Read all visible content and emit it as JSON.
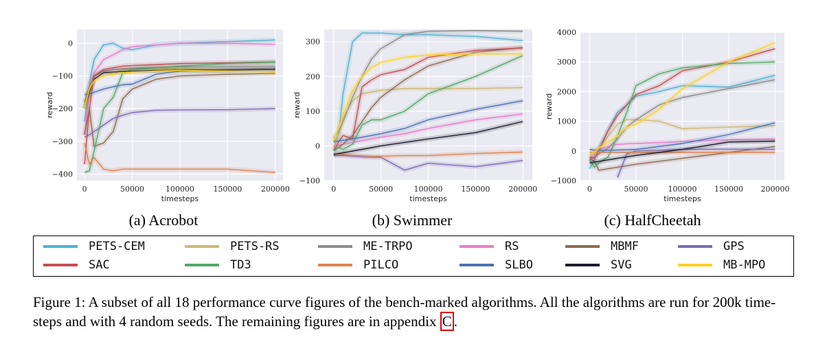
{
  "chart_data": [
    {
      "type": "line",
      "title": "(a) Acrobot",
      "xlabel": "timesteps",
      "ylabel": "reward",
      "xlim": [
        -8000,
        208000
      ],
      "ylim": [
        -420,
        42
      ],
      "xticks": [
        0,
        50000,
        100000,
        150000,
        200000
      ],
      "yticks": [
        -400,
        -300,
        -200,
        -100,
        0
      ],
      "grid": true,
      "x": [
        0,
        5000,
        10000,
        20000,
        30000,
        40000,
        50000,
        75000,
        100000,
        150000,
        200000
      ],
      "series": [
        {
          "name": "PETS-CEM",
          "values": [
            -240,
            -120,
            -50,
            -5,
            0,
            -15,
            -20,
            -5,
            0,
            5,
            10
          ]
        },
        {
          "name": "PETS-RS",
          "values": [
            -190,
            -130,
            -100,
            -85,
            -95,
            -80,
            -80,
            -75,
            -78,
            -82,
            -75
          ]
        },
        {
          "name": "ME-TRPO",
          "values": [
            -180,
            -130,
            -100,
            -85,
            -80,
            -78,
            -76,
            -74,
            -72,
            -71,
            -70
          ]
        },
        {
          "name": "RS",
          "values": [
            -280,
            -150,
            -90,
            -50,
            -35,
            -20,
            -10,
            -5,
            0,
            0,
            -3
          ]
        },
        {
          "name": "MBMF",
          "values": [
            -280,
            -200,
            -315,
            -305,
            -270,
            -170,
            -140,
            -110,
            -100,
            -95,
            -92
          ]
        },
        {
          "name": "GPS",
          "values": [
            -287,
            -280,
            -270,
            -250,
            -230,
            -220,
            -212,
            -205,
            -204,
            -203,
            -200
          ]
        },
        {
          "name": "SAC",
          "values": [
            -370,
            -200,
            -100,
            -80,
            -75,
            -70,
            -68,
            -65,
            -62,
            -60,
            -57
          ]
        },
        {
          "name": "TD3",
          "values": [
            -395,
            -390,
            -330,
            -200,
            -165,
            -90,
            -80,
            -75,
            -70,
            -62,
            -58
          ]
        },
        {
          "name": "PILCO",
          "values": [
            -305,
            -370,
            -350,
            -385,
            -390,
            -385,
            -385,
            -385,
            -385,
            -385,
            -395
          ]
        },
        {
          "name": "SLBO",
          "values": [
            -157,
            -155,
            -150,
            -140,
            -133,
            -127,
            -125,
            -95,
            -85,
            -80,
            -80
          ]
        },
        {
          "name": "SVG",
          "values": [
            -200,
            -150,
            -110,
            -90,
            -88,
            -86,
            -85,
            -83,
            -82,
            -82,
            -80
          ]
        },
        {
          "name": "MB-MPO",
          "values": [
            -200,
            -140,
            -115,
            -100,
            -95,
            -90,
            -88,
            -85,
            -83,
            -85,
            -88
          ]
        }
      ]
    },
    {
      "type": "line",
      "title": "(b) Swimmer",
      "xlabel": "timesteps",
      "ylabel": "reward",
      "xlim": [
        -10000,
        210000
      ],
      "ylim": [
        -100,
        335
      ],
      "xticks": [
        0,
        50000,
        100000,
        150000,
        200000
      ],
      "yticks": [
        -100,
        0,
        100,
        200,
        300
      ],
      "grid": true,
      "x": [
        0,
        5000,
        10000,
        20000,
        30000,
        40000,
        50000,
        75000,
        100000,
        150000,
        200000
      ],
      "series": [
        {
          "name": "PETS-CEM",
          "values": [
            10,
            30,
            150,
            300,
            325,
            325,
            325,
            320,
            320,
            315,
            303
          ]
        },
        {
          "name": "PETS-RS",
          "values": [
            -5,
            30,
            80,
            130,
            150,
            155,
            160,
            165,
            165,
            165,
            168
          ]
        },
        {
          "name": "ME-TRPO",
          "values": [
            22,
            40,
            70,
            140,
            200,
            250,
            280,
            320,
            330,
            332,
            330
          ]
        },
        {
          "name": "RS",
          "values": [
            0,
            2,
            5,
            10,
            15,
            20,
            25,
            35,
            50,
            75,
            92
          ]
        },
        {
          "name": "MBMF",
          "values": [
            -10,
            -5,
            5,
            30,
            70,
            110,
            140,
            190,
            230,
            270,
            283
          ]
        },
        {
          "name": "GPS",
          "values": [
            -28,
            -28,
            -28,
            -30,
            -32,
            -33,
            -33,
            -70,
            -50,
            -60,
            -42
          ]
        },
        {
          "name": "SAC",
          "values": [
            -15,
            10,
            30,
            20,
            170,
            190,
            205,
            220,
            255,
            275,
            282
          ]
        },
        {
          "name": "TD3",
          "values": [
            -15,
            -5,
            -10,
            5,
            60,
            75,
            75,
            100,
            150,
            200,
            260
          ]
        },
        {
          "name": "PILCO",
          "values": [
            -22,
            -24,
            -25,
            -27,
            -28,
            -30,
            -30,
            -28,
            -28,
            -22,
            -18
          ]
        },
        {
          "name": "SLBO",
          "values": [
            12,
            14,
            16,
            20,
            25,
            30,
            35,
            50,
            75,
            105,
            130
          ]
        },
        {
          "name": "SVG",
          "values": [
            -25,
            -22,
            -20,
            -15,
            -10,
            -5,
            0,
            10,
            20,
            38,
            70
          ]
        },
        {
          "name": "MB-MPO",
          "values": [
            15,
            50,
            90,
            160,
            200,
            225,
            240,
            255,
            262,
            265,
            265
          ]
        }
      ]
    },
    {
      "type": "line",
      "title": "(c) HalfCheetah",
      "xlabel": "timesteps",
      "ylabel": "reward",
      "xlim": [
        -10000,
        210000
      ],
      "ylim": [
        -1000,
        4000
      ],
      "xticks": [
        0,
        50000,
        100000,
        150000,
        200000
      ],
      "yticks": [
        -1000,
        0,
        1000,
        2000,
        3000,
        4000
      ],
      "grid": true,
      "x": [
        0,
        5000,
        10000,
        20000,
        30000,
        40000,
        50000,
        75000,
        100000,
        150000,
        200000
      ],
      "series": [
        {
          "name": "PETS-CEM",
          "values": [
            -600,
            -300,
            100,
            700,
            1300,
            1550,
            1850,
            2000,
            2200,
            2150,
            2550
          ]
        },
        {
          "name": "PETS-RS",
          "values": [
            -150,
            -50,
            100,
            500,
            900,
            1050,
            1050,
            1000,
            750,
            800,
            850
          ]
        },
        {
          "name": "ME-TRPO",
          "values": [
            -300,
            -200,
            -100,
            100,
            400,
            800,
            1050,
            1550,
            1800,
            2100,
            2400
          ]
        },
        {
          "name": "RS",
          "values": [
            -250,
            -100,
            50,
            150,
            220,
            240,
            250,
            280,
            320,
            380,
            400
          ]
        },
        {
          "name": "MBMF",
          "values": [
            -250,
            -350,
            -650,
            -600,
            -550,
            -500,
            -450,
            -350,
            -250,
            -50,
            150
          ]
        },
        {
          "name": "GPS",
          "values": [
            null,
            null,
            null,
            null,
            -900,
            -100,
            0,
            20,
            50,
            60,
            50
          ]
        },
        {
          "name": "SAC",
          "values": [
            -200,
            -250,
            0,
            700,
            1200,
            1550,
            1900,
            2200,
            2700,
            3000,
            3450
          ]
        },
        {
          "name": "TD3",
          "values": [
            -300,
            -550,
            -400,
            -200,
            500,
            1300,
            2200,
            2600,
            2800,
            2950,
            3000
          ]
        },
        {
          "name": "PILCO",
          "values": [
            -50,
            -50,
            -50,
            -50,
            -50,
            -50,
            -50,
            -50,
            -50,
            -50,
            -50
          ]
        },
        {
          "name": "SLBO",
          "values": [
            50,
            30,
            20,
            20,
            30,
            40,
            50,
            150,
            250,
            550,
            950
          ]
        },
        {
          "name": "SVG",
          "values": [
            -400,
            -380,
            -350,
            -300,
            -250,
            -200,
            -150,
            -50,
            50,
            300,
            330
          ]
        },
        {
          "name": "MB-MPO",
          "values": [
            -100,
            -50,
            100,
            300,
            500,
            800,
            900,
            1400,
            2100,
            3000,
            3650
          ]
        }
      ]
    }
  ],
  "colors": {
    "PETS-CEM": "#4fb3cf",
    "PETS-RS": "#ccb974",
    "ME-TRPO": "#8c8c8c",
    "RS": "#e67fcb",
    "MBMF": "#8c6d51",
    "GPS": "#7f6bb5",
    "SAC": "#c44e52",
    "TD3": "#55a868",
    "PILCO": "#dd8452",
    "SLBO": "#4c72b0",
    "SVG": "#1b1b2f",
    "MB-MPO": "#ffd21f",
    "plot_bg": "#eaeaf2",
    "grid": "#ffffff"
  },
  "legend": {
    "rows": [
      [
        "PETS-CEM",
        "PETS-RS",
        "ME-TRPO",
        "RS",
        "MBMF",
        "GPS"
      ],
      [
        "SAC",
        "TD3",
        "PILCO",
        "SLBO",
        "SVG",
        "MB-MPO"
      ]
    ]
  },
  "caption": {
    "label": "Figure 1:",
    "text": " A subset of all 18 performance curve figures of the bench-marked algorithms. All the algorithms are run for 200k time-steps and with 4 random seeds. The remaining figures are in appendix ",
    "link": "C",
    "end": "."
  }
}
